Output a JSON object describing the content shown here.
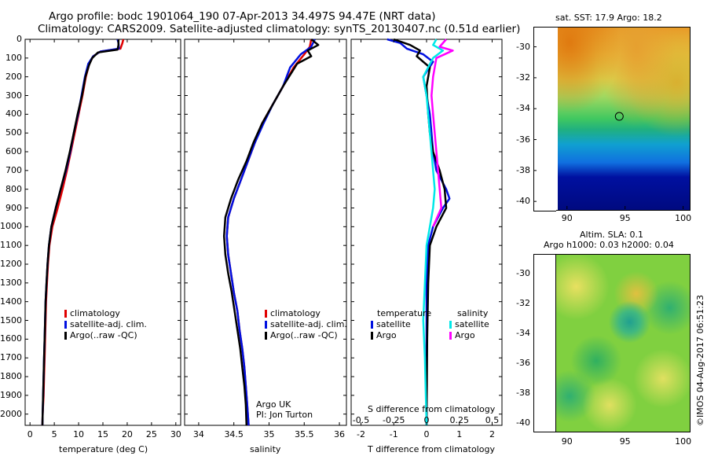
{
  "title_line1": "Argo profile: bodc 1901064_190 07-Apr-2013 34.497S 94.47E (NRT data)",
  "title_line2": "Climatology: CARS2009. Satellite-adjusted climatology: synTS_20130407.nc (0.51d earlier)",
  "map1_title": "sat. SST: 17.9 Argo: 18.2",
  "map2_title_line1": "Altim. SLA: 0.1",
  "map2_title_line2": "Argo h1000: 0.03 h2000: 0.04",
  "watermark": "©IMOS 04-Aug-2017 06:51:23",
  "argo_uk_line1": "Argo UK",
  "argo_uk_line2": "PI: Jon Turton",
  "colors": {
    "climatology": "#e00000",
    "satellite": "#0010e0",
    "argo": "#000000",
    "sal_sat": "#00e8e8",
    "sal_argo": "#ff00ff"
  },
  "chart_data": [
    {
      "type": "line",
      "name": "temperature",
      "xlabel": "temperature (deg C)",
      "ylabel": "",
      "xlim": [
        -1,
        31
      ],
      "ylim": [
        2060,
        0
      ],
      "xticks": [
        0,
        5,
        10,
        15,
        20,
        25,
        30
      ],
      "yticks": [
        0,
        100,
        200,
        300,
        400,
        500,
        600,
        700,
        800,
        900,
        1000,
        1100,
        1200,
        1300,
        1400,
        1500,
        1600,
        1700,
        1800,
        1900,
        2000
      ],
      "legend": [
        "climatology",
        "satellite-adj. clim.",
        "Argo(..raw -QC)"
      ],
      "series": [
        {
          "name": "climatology",
          "color_key": "climatology",
          "points": [
            [
              19.2,
              0
            ],
            [
              19.0,
              20
            ],
            [
              18.6,
              50
            ],
            [
              14.5,
              65
            ],
            [
              13.0,
              90
            ],
            [
              12.2,
              130
            ],
            [
              11.5,
              200
            ],
            [
              10.8,
              300
            ],
            [
              10.0,
              400
            ],
            [
              9.2,
              500
            ],
            [
              8.4,
              600
            ],
            [
              7.6,
              700
            ],
            [
              6.7,
              800
            ],
            [
              5.7,
              900
            ],
            [
              4.6,
              1000
            ],
            [
              4.0,
              1100
            ],
            [
              3.7,
              1200
            ],
            [
              3.5,
              1300
            ],
            [
              3.3,
              1400
            ],
            [
              3.2,
              1500
            ],
            [
              3.1,
              1600
            ],
            [
              3.0,
              1700
            ],
            [
              2.9,
              1800
            ],
            [
              2.8,
              1900
            ],
            [
              2.6,
              2000
            ],
            [
              2.55,
              2060
            ]
          ]
        },
        {
          "name": "satellite-adj. clim.",
          "color_key": "satellite",
          "points": [
            [
              18.0,
              0
            ],
            [
              18.2,
              20
            ],
            [
              18.3,
              50
            ],
            [
              14.5,
              65
            ],
            [
              13.0,
              90
            ],
            [
              12.0,
              130
            ],
            [
              11.3,
              200
            ],
            [
              10.6,
              300
            ],
            [
              9.9,
              400
            ],
            [
              9.0,
              500
            ],
            [
              8.3,
              600
            ],
            [
              7.4,
              700
            ],
            [
              6.3,
              800
            ],
            [
              5.3,
              900
            ],
            [
              4.4,
              1000
            ],
            [
              3.9,
              1100
            ],
            [
              3.6,
              1200
            ],
            [
              3.4,
              1300
            ],
            [
              3.2,
              1400
            ],
            [
              3.1,
              1500
            ],
            [
              3.0,
              1600
            ],
            [
              2.9,
              1700
            ],
            [
              2.8,
              1800
            ],
            [
              2.7,
              1900
            ],
            [
              2.6,
              2000
            ],
            [
              2.55,
              2060
            ]
          ]
        },
        {
          "name": "Argo(..raw -QC)",
          "color_key": "argo",
          "points": [
            [
              18.2,
              0
            ],
            [
              18.2,
              30
            ],
            [
              18.0,
              55
            ],
            [
              14.0,
              70
            ],
            [
              12.8,
              100
            ],
            [
              12.1,
              140
            ],
            [
              11.4,
              200
            ],
            [
              10.7,
              300
            ],
            [
              9.8,
              400
            ],
            [
              9.0,
              500
            ],
            [
              8.2,
              600
            ],
            [
              7.3,
              700
            ],
            [
              6.3,
              800
            ],
            [
              5.3,
              900
            ],
            [
              4.4,
              1000
            ],
            [
              3.9,
              1100
            ],
            [
              3.6,
              1200
            ],
            [
              3.4,
              1300
            ],
            [
              3.2,
              1400
            ],
            [
              3.1,
              1500
            ],
            [
              3.0,
              1600
            ],
            [
              2.9,
              1700
            ],
            [
              2.8,
              1800
            ],
            [
              2.7,
              1900
            ],
            [
              2.6,
              2000
            ],
            [
              2.55,
              2060
            ]
          ]
        }
      ]
    },
    {
      "type": "line",
      "name": "salinity",
      "xlabel": "salinity",
      "ylabel": "",
      "xlim": [
        33.8,
        36.1
      ],
      "ylim": [
        2060,
        0
      ],
      "xticks": [
        34,
        34.5,
        35,
        35.5,
        36
      ],
      "legend": [
        "climatology",
        "satellite-adj. clim.",
        "Argo(..raw -QC)"
      ],
      "series": [
        {
          "name": "climatology",
          "color_key": "climatology",
          "points": [
            [
              35.6,
              0
            ],
            [
              35.58,
              40
            ],
            [
              35.5,
              80
            ],
            [
              35.35,
              150
            ],
            [
              35.2,
              250
            ],
            [
              35.05,
              350
            ],
            [
              34.9,
              450
            ],
            [
              34.8,
              550
            ],
            [
              34.7,
              650
            ],
            [
              34.6,
              750
            ],
            [
              34.5,
              850
            ],
            [
              34.42,
              950
            ],
            [
              34.4,
              1050
            ],
            [
              34.42,
              1150
            ],
            [
              34.46,
              1250
            ],
            [
              34.5,
              1350
            ],
            [
              34.55,
              1450
            ],
            [
              34.58,
              1550
            ],
            [
              34.62,
              1650
            ],
            [
              34.65,
              1750
            ],
            [
              34.67,
              1850
            ],
            [
              34.69,
              1950
            ],
            [
              34.71,
              2060
            ]
          ]
        },
        {
          "name": "satellite-adj. clim.",
          "color_key": "satellite",
          "points": [
            [
              35.65,
              0
            ],
            [
              35.6,
              40
            ],
            [
              35.45,
              80
            ],
            [
              35.3,
              150
            ],
            [
              35.2,
              250
            ],
            [
              35.05,
              350
            ],
            [
              34.92,
              450
            ],
            [
              34.8,
              550
            ],
            [
              34.7,
              650
            ],
            [
              34.6,
              750
            ],
            [
              34.5,
              850
            ],
            [
              34.42,
              950
            ],
            [
              34.4,
              1050
            ],
            [
              34.42,
              1150
            ],
            [
              34.46,
              1250
            ],
            [
              34.5,
              1350
            ],
            [
              34.55,
              1450
            ],
            [
              34.58,
              1550
            ],
            [
              34.62,
              1650
            ],
            [
              34.65,
              1750
            ],
            [
              34.67,
              1850
            ],
            [
              34.69,
              1950
            ],
            [
              34.71,
              2060
            ]
          ]
        },
        {
          "name": "Argo(..raw -QC)",
          "color_key": "argo",
          "points": [
            [
              35.6,
              0
            ],
            [
              35.7,
              30
            ],
            [
              35.55,
              60
            ],
            [
              35.6,
              90
            ],
            [
              35.4,
              130
            ],
            [
              35.2,
              250
            ],
            [
              35.05,
              350
            ],
            [
              34.9,
              450
            ],
            [
              34.78,
              550
            ],
            [
              34.68,
              650
            ],
            [
              34.56,
              750
            ],
            [
              34.46,
              850
            ],
            [
              34.38,
              950
            ],
            [
              34.36,
              1050
            ],
            [
              34.38,
              1150
            ],
            [
              34.42,
              1250
            ],
            [
              34.47,
              1350
            ],
            [
              34.51,
              1450
            ],
            [
              34.55,
              1550
            ],
            [
              34.59,
              1650
            ],
            [
              34.62,
              1750
            ],
            [
              34.65,
              1850
            ],
            [
              34.67,
              1950
            ],
            [
              34.68,
              2060
            ]
          ]
        }
      ]
    },
    {
      "type": "line",
      "name": "difference",
      "xlabel": "T difference from climatology",
      "xlabel_top": "S difference from climatology",
      "xlim": [
        -2.3,
        2.3
      ],
      "xticks": [
        -2,
        -1,
        0,
        1,
        2
      ],
      "xticks_s": [
        -0.5,
        -0.25,
        0,
        0.25,
        0.5
      ],
      "legend_left_title": "temperature",
      "legend_right_title": "salinity",
      "legend_left": [
        "satellite",
        "Argo"
      ],
      "legend_right": [
        "satellite",
        "Argo"
      ],
      "series": [
        {
          "name": "T satellite",
          "color_key": "satellite",
          "points": [
            [
              -1.2,
              0
            ],
            [
              -0.8,
              20
            ],
            [
              -0.6,
              50
            ],
            [
              -0.1,
              80
            ],
            [
              0.2,
              120
            ],
            [
              -0.1,
              200
            ],
            [
              0.0,
              300
            ],
            [
              0.1,
              400
            ],
            [
              0.15,
              500
            ],
            [
              0.2,
              600
            ],
            [
              0.3,
              700
            ],
            [
              0.6,
              800
            ],
            [
              0.7,
              850
            ],
            [
              0.5,
              900
            ],
            [
              0.2,
              1000
            ],
            [
              0.05,
              1100
            ],
            [
              0.0,
              1300
            ],
            [
              0.0,
              1600
            ],
            [
              0.0,
              2060
            ]
          ]
        },
        {
          "name": "T Argo",
          "color_key": "argo",
          "points": [
            [
              -1.0,
              0
            ],
            [
              -0.5,
              30
            ],
            [
              -0.2,
              60
            ],
            [
              -0.3,
              90
            ],
            [
              0.1,
              150
            ],
            [
              0.0,
              250
            ],
            [
              0.05,
              400
            ],
            [
              0.1,
              500
            ],
            [
              0.2,
              600
            ],
            [
              0.4,
              700
            ],
            [
              0.55,
              800
            ],
            [
              0.6,
              900
            ],
            [
              0.3,
              1000
            ],
            [
              0.1,
              1100
            ],
            [
              0.05,
              1300
            ],
            [
              0.02,
              1600
            ],
            [
              0.0,
              2060
            ]
          ]
        },
        {
          "name": "S satellite",
          "color_key": "sal_sat",
          "points": [
            [
              0.3,
              0
            ],
            [
              0.2,
              30
            ],
            [
              0.5,
              60
            ],
            [
              0.2,
              100
            ],
            [
              -0.1,
              200
            ],
            [
              0.0,
              300
            ],
            [
              0.05,
              400
            ],
            [
              0.1,
              500
            ],
            [
              0.15,
              600
            ],
            [
              0.2,
              700
            ],
            [
              0.25,
              800
            ],
            [
              0.2,
              900
            ],
            [
              0.1,
              1000
            ],
            [
              0.0,
              1100
            ],
            [
              -0.05,
              1300
            ],
            [
              -0.1,
              1500
            ],
            [
              -0.05,
              1700
            ],
            [
              0.0,
              2060
            ]
          ]
        },
        {
          "name": "S Argo",
          "color_key": "sal_argo",
          "points": [
            [
              0.6,
              0
            ],
            [
              0.4,
              40
            ],
            [
              0.8,
              60
            ],
            [
              0.3,
              100
            ],
            [
              0.2,
              200
            ],
            [
              0.15,
              300
            ],
            [
              0.2,
              400
            ],
            [
              0.25,
              500
            ],
            [
              0.3,
              600
            ],
            [
              0.35,
              700
            ],
            [
              0.4,
              800
            ],
            [
              0.45,
              900
            ],
            [
              0.2,
              1000
            ]
          ]
        }
      ]
    },
    {
      "type": "heatmap",
      "name": "map-sst",
      "xlim": [
        89,
        100.5
      ],
      "ylim": [
        -40.5,
        -28.7
      ],
      "xticks": [
        90,
        95,
        100
      ],
      "yticks": [
        -30,
        -32,
        -34,
        -36,
        -38,
        -40
      ],
      "marker": [
        94.5,
        -34.5
      ]
    },
    {
      "type": "heatmap",
      "name": "map-sla",
      "xlim": [
        89,
        100.5
      ],
      "ylim": [
        -40.5,
        -28.7
      ],
      "xticks": [
        90,
        95,
        100
      ],
      "yticks": [
        -30,
        -32,
        -34,
        -36,
        -38,
        -40
      ],
      "marker": [
        94.5,
        -34.5
      ]
    }
  ],
  "legend_labels": [
    "climatology",
    "satellite-adj. clim.",
    "Argo(..raw -QC)"
  ],
  "diff_legend": {
    "temperature": "temperature",
    "salinity": "salinity",
    "satellite": "satellite",
    "argo": "Argo"
  }
}
